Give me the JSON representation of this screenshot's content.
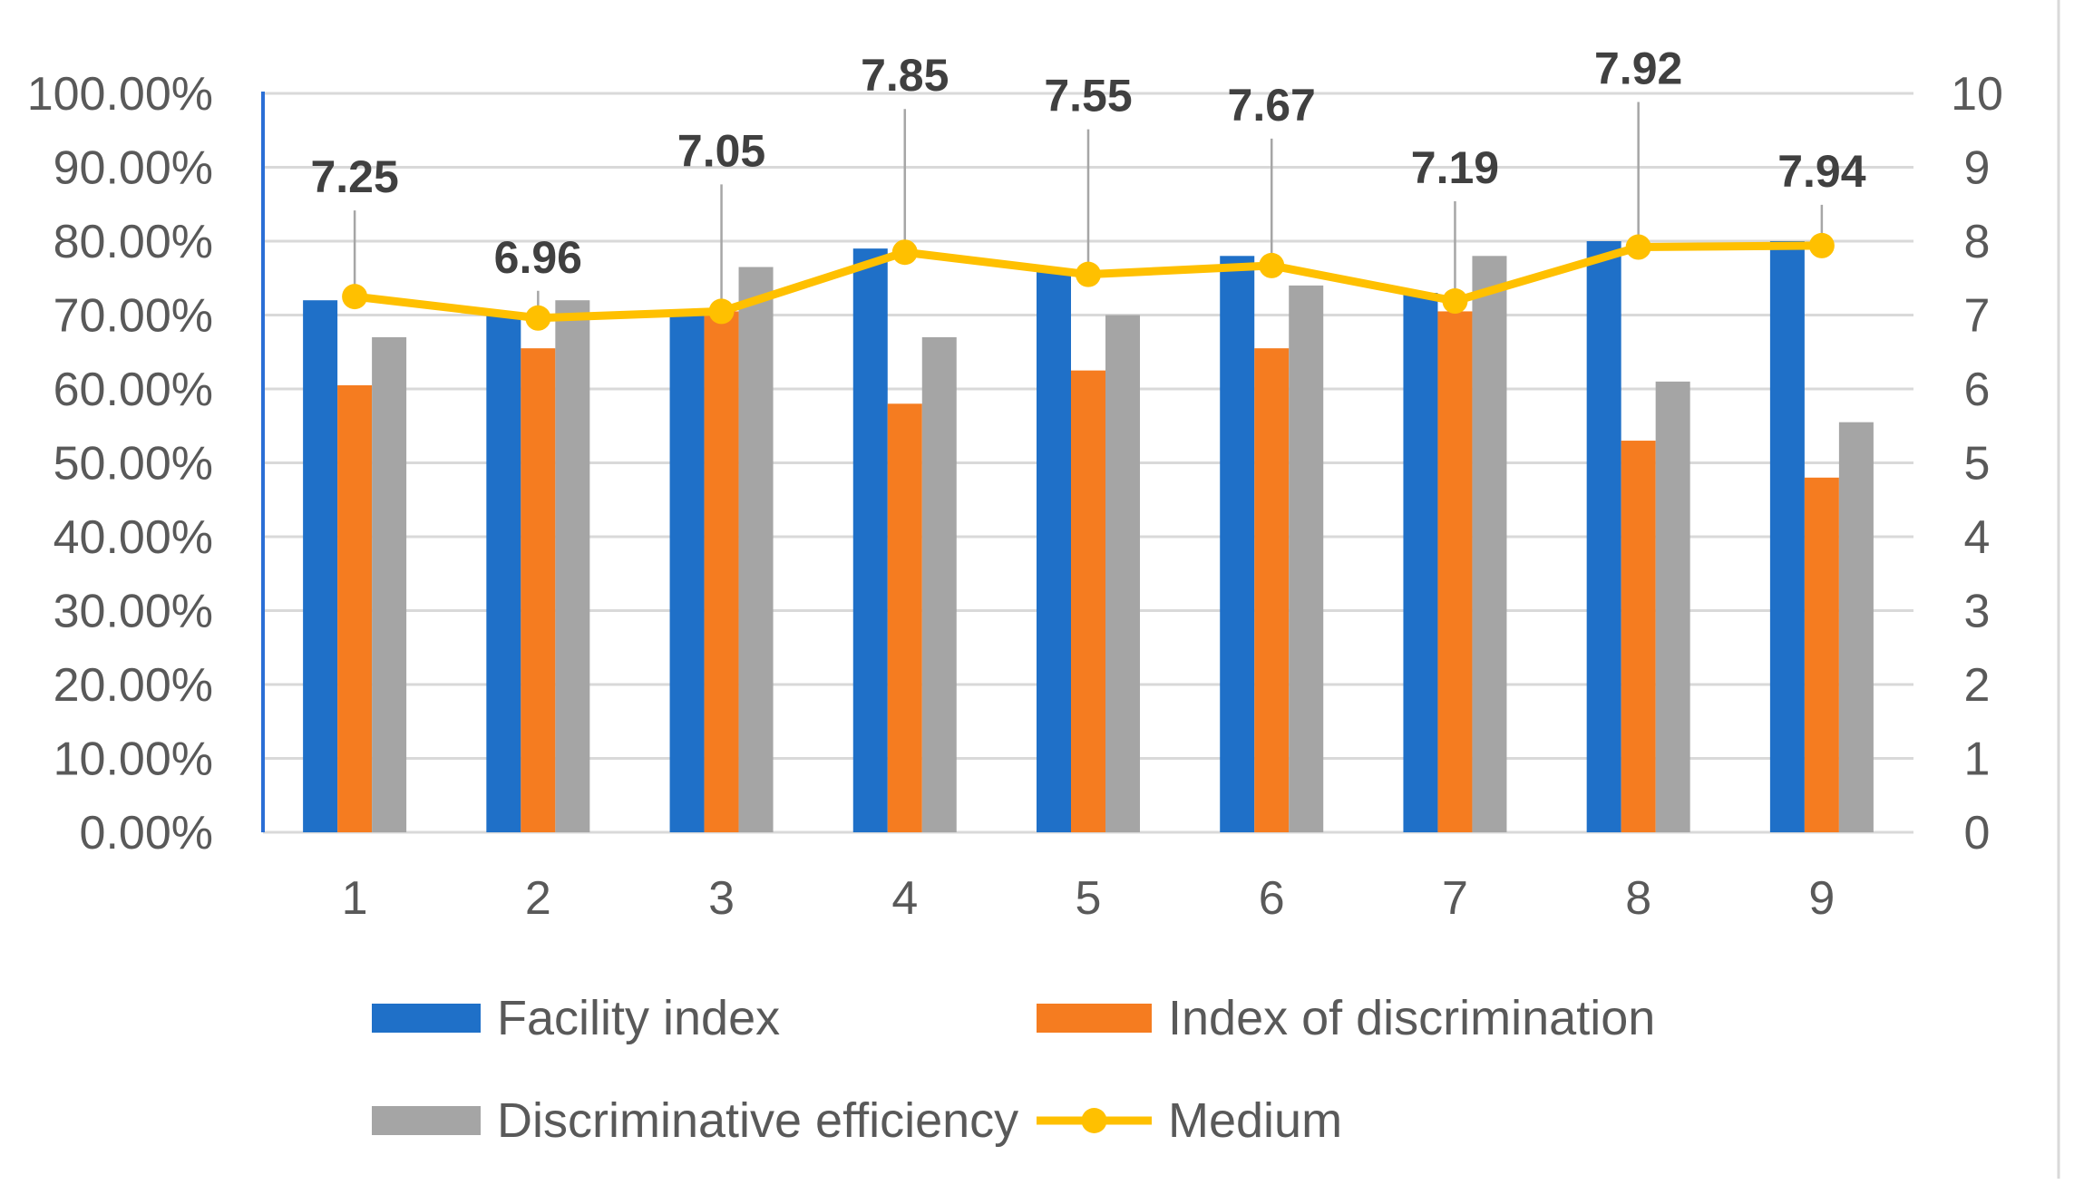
{
  "chart_data": {
    "type": "bar",
    "categories": [
      "1",
      "2",
      "3",
      "4",
      "5",
      "6",
      "7",
      "8",
      "9"
    ],
    "series": [
      {
        "name": "Facility index",
        "kind": "bar",
        "axis": "left",
        "color": "#1f70c8",
        "values": [
          72,
          70,
          70,
          79,
          76,
          78,
          73,
          80,
          80
        ]
      },
      {
        "name": "Index of discrimination",
        "kind": "bar",
        "axis": "left",
        "color": "#f57c20",
        "values": [
          60.5,
          65.5,
          70.5,
          58,
          62.5,
          65.5,
          70.5,
          53,
          48
        ]
      },
      {
        "name": "Discriminative efficiency",
        "kind": "bar",
        "axis": "left",
        "color": "#a5a5a5",
        "values": [
          67,
          72,
          76.5,
          67,
          70,
          74,
          78,
          61,
          55.5
        ]
      },
      {
        "name": "Medium",
        "kind": "line",
        "axis": "right",
        "color": "#ffc000",
        "values": [
          7.25,
          6.96,
          7.05,
          7.85,
          7.55,
          7.67,
          7.19,
          7.92,
          7.94
        ],
        "labels": [
          "7.25",
          "6.96",
          "7.05",
          "7.85",
          "7.55",
          "7.67",
          "7.19",
          "7.92",
          "7.94"
        ]
      }
    ],
    "y_left": {
      "lim": [
        0,
        100
      ],
      "ticks": [
        "0.00%",
        "10.00%",
        "20.00%",
        "30.00%",
        "40.00%",
        "50.00%",
        "60.00%",
        "70.00%",
        "80.00%",
        "90.00%",
        "100.00%"
      ]
    },
    "y_right": {
      "lim": [
        0,
        10
      ],
      "ticks": [
        "0",
        "1",
        "2",
        "3",
        "4",
        "5",
        "6",
        "7",
        "8",
        "9",
        "10"
      ]
    },
    "legend": [
      "Facility index",
      "Index of discrimination",
      "Discriminative efficiency",
      "Medium"
    ],
    "legend_position": "bottom",
    "grid": true,
    "title": "",
    "xlabel": "",
    "ylabel": ""
  }
}
